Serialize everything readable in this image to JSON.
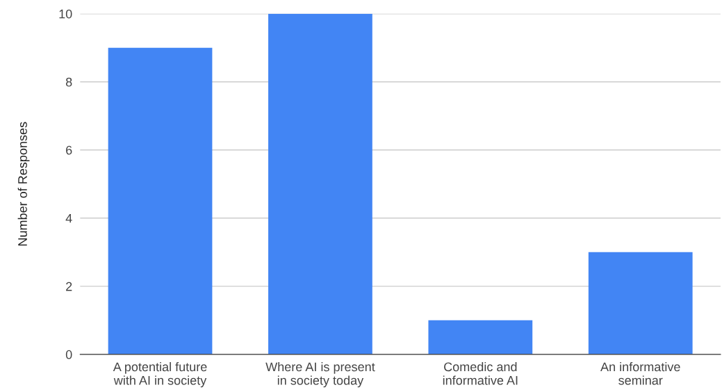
{
  "chart_data": {
    "type": "bar",
    "ylabel": "Number of Responses",
    "categories": [
      "A potential future\nwith AI in society",
      "Where AI is present\nin society today",
      "Comedic and\ninformative AI",
      "An informative\nseminar"
    ],
    "values": [
      9,
      10,
      1,
      3
    ],
    "color": "#4285f4",
    "ylim": [
      0,
      10
    ],
    "yticks": [
      0,
      2,
      4,
      6,
      8,
      10
    ],
    "grid": "y"
  }
}
